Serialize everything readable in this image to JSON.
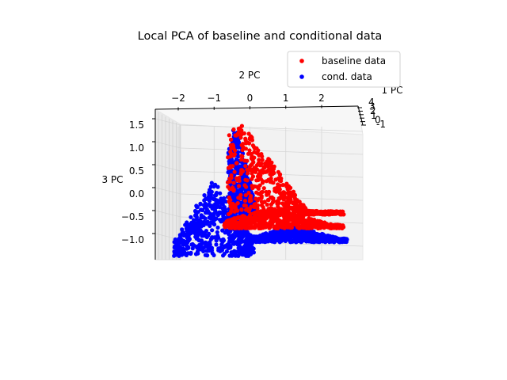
{
  "chart_data": {
    "type": "scatter",
    "projection": "3d",
    "title": "Local PCA of baseline and conditional data",
    "xlabel": "1 PC",
    "ylabel": "2 PC",
    "zlabel": "3 PC",
    "x_ticks": [
      "4",
      "3",
      "2",
      "1",
      "0",
      "-1"
    ],
    "y_ticks": [
      "−2",
      "−1",
      "0",
      "1",
      "2"
    ],
    "z_ticks": [
      "1.5",
      "1.0",
      "0.5",
      "0.0",
      "−0.5",
      "−1.0"
    ],
    "ylim": [
      -2.6,
      3.1
    ],
    "zlim": [
      -1.5,
      1.85
    ],
    "grid": true,
    "legend_position": "top-right",
    "series": [
      {
        "name": "baseline data",
        "color": "#ff0000",
        "clusters": [
          {
            "y_range": [
              -0.6,
              2.6
            ],
            "z_range": [
              -0.45,
              1.6
            ],
            "peak_y": -0.3,
            "peak_z": 1.6
          },
          {
            "y_range": [
              -0.7,
              2.6
            ],
            "z_range": [
              -0.75,
              0.2
            ],
            "peak_y": 0.6,
            "peak_z": -0.3
          }
        ]
      },
      {
        "name": "cond. data",
        "color": "#0000ff",
        "clusters": [
          {
            "y_range": [
              -2.1,
              0.1
            ],
            "z_range": [
              -1.35,
              0.7
            ],
            "peak_y": -1.0,
            "peak_z": 0.3
          },
          {
            "y_range": [
              -0.6,
              0.4
            ],
            "z_range": [
              -0.5,
              1.55
            ],
            "peak_y": -0.4,
            "peak_z": 1.55
          },
          {
            "y_range": [
              0.0,
              2.7
            ],
            "z_range": [
              -1.05,
              -0.6
            ],
            "peak_y": 1.2,
            "peak_z": -0.7
          }
        ]
      }
    ]
  }
}
